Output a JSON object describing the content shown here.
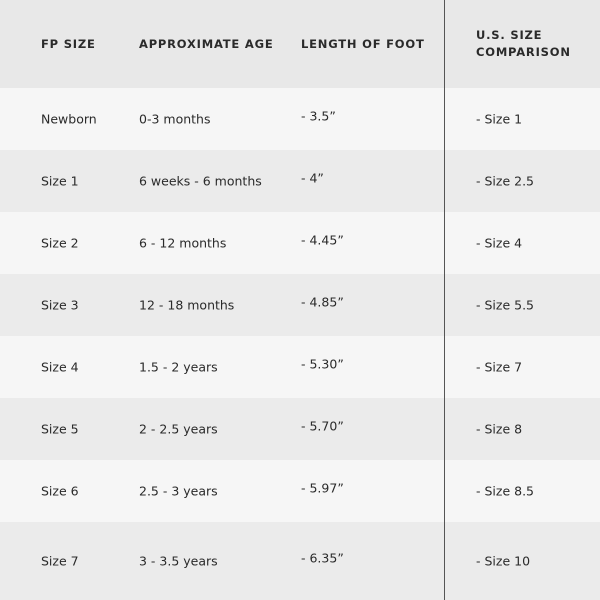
{
  "table": {
    "header": [
      "FP SIZE",
      "APPROXIMATE AGE",
      "LENGTH OF FOOT",
      "U.S. SIZE COMPARISON"
    ],
    "rows": [
      [
        "Newborn",
        "0-3 months",
        "- 3.5”",
        "- Size 1"
      ],
      [
        "Size 1",
        "6 weeks - 6 months",
        "- 4”",
        "- Size 2.5"
      ],
      [
        "Size 2",
        "6 - 12 months",
        "- 4.45”",
        "- Size 4"
      ],
      [
        "Size 3",
        "12 - 18 months",
        "- 4.85”",
        "- Size 5.5"
      ],
      [
        "Size 4",
        "1.5 - 2 years",
        "- 5.30”",
        "- Size 7"
      ],
      [
        "Size 5",
        "2 - 2.5 years",
        "- 5.70”",
        "- Size 8"
      ],
      [
        "Size 6",
        "2.5 - 3 years",
        "- 5.97”",
        "- Size 8.5"
      ],
      [
        "Size 7",
        "3 - 3.5 years",
        "- 6.35”",
        "- Size 10"
      ]
    ]
  }
}
